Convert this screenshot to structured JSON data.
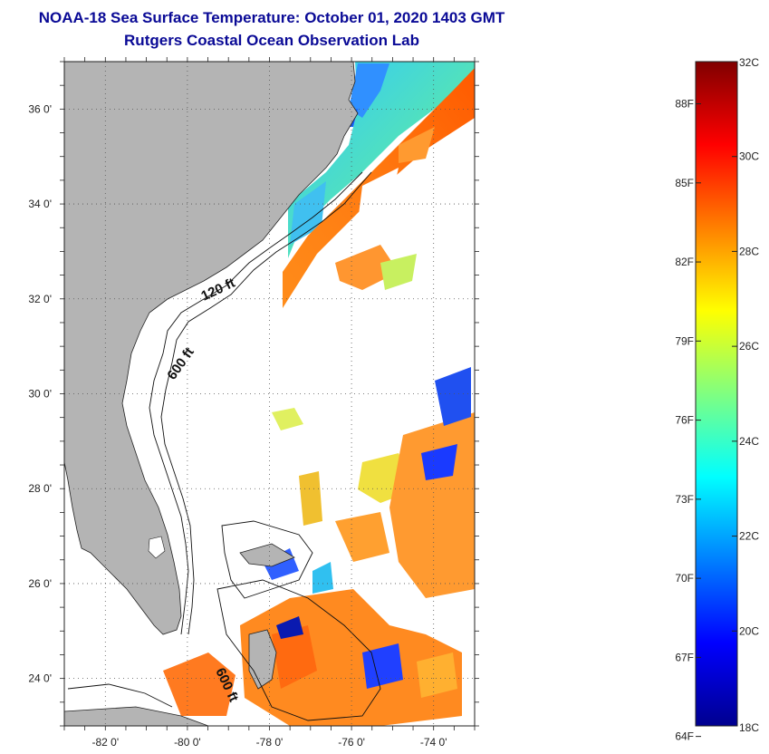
{
  "header": {
    "title": "NOAA-18 Sea Surface Temperature:  October 01, 2020 1403 GMT",
    "subtitle": "Rutgers Coastal Ocean Observation Lab"
  },
  "map": {
    "lon_range": [
      -83,
      -73
    ],
    "lat_range": [
      23,
      37
    ],
    "lon_ticks": [
      {
        "value": -82,
        "label": "-82 0'"
      },
      {
        "value": -80,
        "label": "-80 0'"
      },
      {
        "value": -78,
        "label": "-78 0'"
      },
      {
        "value": -76,
        "label": "-76 0'"
      },
      {
        "value": -74,
        "label": "-74 0'"
      }
    ],
    "lat_ticks": [
      {
        "value": 36,
        "label": "36 0'"
      },
      {
        "value": 34,
        "label": "34 0'"
      },
      {
        "value": 32,
        "label": "32 0'"
      },
      {
        "value": 30,
        "label": "30 0'"
      },
      {
        "value": 28,
        "label": "28 0'"
      },
      {
        "value": 26,
        "label": "26 0'"
      },
      {
        "value": 24,
        "label": "24 0'"
      }
    ],
    "contour_labels": {
      "shelf_120": "120 ft",
      "shelf_600_north": "600 ft",
      "shelf_600_south": "600 ft"
    },
    "colors": {
      "land": "#b4b4b4",
      "ocean_no_data": "#ffffff",
      "gridline": "#555555"
    }
  },
  "legend": {
    "min_c": 18,
    "max_c": 32,
    "celsius_ticks": [
      {
        "value": 32,
        "label": "32C"
      },
      {
        "value": 30,
        "label": "30C"
      },
      {
        "value": 28,
        "label": "28C"
      },
      {
        "value": 26,
        "label": "26C"
      },
      {
        "value": 24,
        "label": "24C"
      },
      {
        "value": 22,
        "label": "22C"
      },
      {
        "value": 20,
        "label": "20C"
      },
      {
        "value": 18,
        "label": "18C"
      }
    ],
    "fahrenheit_ticks": [
      {
        "value": 88,
        "label": "88F"
      },
      {
        "value": 85,
        "label": "85F"
      },
      {
        "value": 82,
        "label": "82F"
      },
      {
        "value": 79,
        "label": "79F"
      },
      {
        "value": 76,
        "label": "76F"
      },
      {
        "value": 73,
        "label": "73F"
      },
      {
        "value": 70,
        "label": "70F"
      },
      {
        "value": 67,
        "label": "67F"
      },
      {
        "value": 64,
        "label": "64F"
      }
    ],
    "colormap": [
      "#00008f",
      "#0000ff",
      "#0080ff",
      "#00ffff",
      "#80ff80",
      "#ffff00",
      "#ff8000",
      "#ff0000",
      "#800000"
    ]
  }
}
